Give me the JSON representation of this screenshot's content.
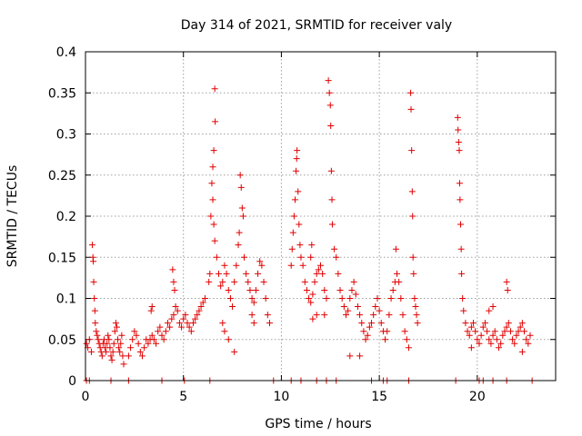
{
  "chart_data": {
    "type": "scatter",
    "title": "Day 314 of 2021, SRMTID for receiver valy",
    "xlabel": "GPS time / hours",
    "ylabel": "SRMTID / TECUs",
    "xlim": [
      0,
      24
    ],
    "ylim": [
      0,
      0.4
    ],
    "xticks": [
      0,
      5,
      10,
      15,
      20
    ],
    "yticks": [
      0,
      0.05,
      0.1,
      0.15,
      0.2,
      0.25,
      0.3,
      0.35,
      0.4
    ],
    "xtick_labels": [
      "0",
      "5",
      "10",
      "15",
      "20"
    ],
    "ytick_labels": [
      "0",
      "0.05",
      "0.1",
      "0.15",
      "0.2",
      "0.25",
      "0.3",
      "0.35",
      "0.4"
    ],
    "grid": true,
    "marker": "+",
    "color": "#e00000",
    "series": [
      {
        "name": "SRMTID",
        "points": [
          [
            0.05,
            0.045
          ],
          [
            0.12,
            0.04
          ],
          [
            0.2,
            0.05
          ],
          [
            0.3,
            0.035
          ],
          [
            0.35,
            0.165
          ],
          [
            0.38,
            0.15
          ],
          [
            0.4,
            0.145
          ],
          [
            0.42,
            0.12
          ],
          [
            0.45,
            0.1
          ],
          [
            0.48,
            0.085
          ],
          [
            0.5,
            0.07
          ],
          [
            0.55,
            0.06
          ],
          [
            0.6,
            0.055
          ],
          [
            0.65,
            0.05
          ],
          [
            0.7,
            0.045
          ],
          [
            0.75,
            0.04
          ],
          [
            0.8,
            0.035
          ],
          [
            0.85,
            0.03
          ],
          [
            0.9,
            0.045
          ],
          [
            0.95,
            0.05
          ],
          [
            1.0,
            0.04
          ],
          [
            1.05,
            0.035
          ],
          [
            1.1,
            0.045
          ],
          [
            1.15,
            0.055
          ],
          [
            1.2,
            0.05
          ],
          [
            1.25,
            0.04
          ],
          [
            1.3,
            0.03
          ],
          [
            1.35,
            0.025
          ],
          [
            1.4,
            0.035
          ],
          [
            1.45,
            0.045
          ],
          [
            1.5,
            0.06
          ],
          [
            1.55,
            0.07
          ],
          [
            1.6,
            0.065
          ],
          [
            1.65,
            0.05
          ],
          [
            1.7,
            0.04
          ],
          [
            1.75,
            0.035
          ],
          [
            1.8,
            0.045
          ],
          [
            1.85,
            0.055
          ],
          [
            1.9,
            0.03
          ],
          [
            1.95,
            0.02
          ],
          [
            2.2,
            0.03
          ],
          [
            2.3,
            0.04
          ],
          [
            2.4,
            0.05
          ],
          [
            2.5,
            0.06
          ],
          [
            2.6,
            0.055
          ],
          [
            2.7,
            0.045
          ],
          [
            2.8,
            0.035
          ],
          [
            2.9,
            0.03
          ],
          [
            3.0,
            0.04
          ],
          [
            3.1,
            0.05
          ],
          [
            3.2,
            0.045
          ],
          [
            3.3,
            0.05
          ],
          [
            3.4,
            0.055
          ],
          [
            3.5,
            0.05
          ],
          [
            3.6,
            0.045
          ],
          [
            3.7,
            0.06
          ],
          [
            3.8,
            0.065
          ],
          [
            3.9,
            0.055
          ],
          [
            4.0,
            0.05
          ],
          [
            4.1,
            0.06
          ],
          [
            4.2,
            0.07
          ],
          [
            4.3,
            0.065
          ],
          [
            4.4,
            0.075
          ],
          [
            4.5,
            0.08
          ],
          [
            4.6,
            0.09
          ],
          [
            4.7,
            0.085
          ],
          [
            4.8,
            0.07
          ],
          [
            4.9,
            0.065
          ],
          [
            5.0,
            0.075
          ],
          [
            5.1,
            0.08
          ],
          [
            5.2,
            0.07
          ],
          [
            5.3,
            0.065
          ],
          [
            5.4,
            0.06
          ],
          [
            5.5,
            0.07
          ],
          [
            5.6,
            0.075
          ],
          [
            5.7,
            0.08
          ],
          [
            5.8,
            0.085
          ],
          [
            5.9,
            0.09
          ],
          [
            6.0,
            0.095
          ],
          [
            6.1,
            0.1
          ],
          [
            4.45,
            0.135
          ],
          [
            4.5,
            0.12
          ],
          [
            4.55,
            0.11
          ],
          [
            3.35,
            0.085
          ],
          [
            3.4,
            0.09
          ],
          [
            6.3,
            0.12
          ],
          [
            6.35,
            0.13
          ],
          [
            6.4,
            0.2
          ],
          [
            6.45,
            0.24
          ],
          [
            6.5,
            0.26
          ],
          [
            6.55,
            0.28
          ],
          [
            6.6,
            0.355
          ],
          [
            6.62,
            0.315
          ],
          [
            6.5,
            0.22
          ],
          [
            6.55,
            0.19
          ],
          [
            6.6,
            0.17
          ],
          [
            6.7,
            0.15
          ],
          [
            6.8,
            0.13
          ],
          [
            6.9,
            0.115
          ],
          [
            7.0,
            0.12
          ],
          [
            7.1,
            0.14
          ],
          [
            7.2,
            0.13
          ],
          [
            7.3,
            0.11
          ],
          [
            7.4,
            0.1
          ],
          [
            7.5,
            0.09
          ],
          [
            7.6,
            0.12
          ],
          [
            7.7,
            0.14
          ],
          [
            7.8,
            0.165
          ],
          [
            7.85,
            0.18
          ],
          [
            7.9,
            0.25
          ],
          [
            7.95,
            0.235
          ],
          [
            8.0,
            0.21
          ],
          [
            8.05,
            0.2
          ],
          [
            8.1,
            0.15
          ],
          [
            8.2,
            0.13
          ],
          [
            8.3,
            0.12
          ],
          [
            8.4,
            0.11
          ],
          [
            8.5,
            0.1
          ],
          [
            8.6,
            0.095
          ],
          [
            8.7,
            0.11
          ],
          [
            8.8,
            0.13
          ],
          [
            8.9,
            0.145
          ],
          [
            9.0,
            0.14
          ],
          [
            9.1,
            0.12
          ],
          [
            9.2,
            0.1
          ],
          [
            9.3,
            0.08
          ],
          [
            9.4,
            0.07
          ],
          [
            7.0,
            0.07
          ],
          [
            7.1,
            0.06
          ],
          [
            7.3,
            0.05
          ],
          [
            7.6,
            0.035
          ],
          [
            8.5,
            0.08
          ],
          [
            8.6,
            0.07
          ],
          [
            10.5,
            0.14
          ],
          [
            10.55,
            0.16
          ],
          [
            10.6,
            0.18
          ],
          [
            10.65,
            0.2
          ],
          [
            10.7,
            0.22
          ],
          [
            10.75,
            0.255
          ],
          [
            10.78,
            0.27
          ],
          [
            10.8,
            0.28
          ],
          [
            10.85,
            0.23
          ],
          [
            10.9,
            0.19
          ],
          [
            10.95,
            0.165
          ],
          [
            11.0,
            0.15
          ],
          [
            11.1,
            0.14
          ],
          [
            11.2,
            0.12
          ],
          [
            11.3,
            0.11
          ],
          [
            11.4,
            0.1
          ],
          [
            11.5,
            0.095
          ],
          [
            11.6,
            0.105
          ],
          [
            11.7,
            0.12
          ],
          [
            11.8,
            0.13
          ],
          [
            11.9,
            0.135
          ],
          [
            12.0,
            0.14
          ],
          [
            12.1,
            0.13
          ],
          [
            12.2,
            0.11
          ],
          [
            12.3,
            0.1
          ],
          [
            12.4,
            0.365
          ],
          [
            12.45,
            0.35
          ],
          [
            12.5,
            0.335
          ],
          [
            12.52,
            0.31
          ],
          [
            12.55,
            0.255
          ],
          [
            12.58,
            0.22
          ],
          [
            12.6,
            0.19
          ],
          [
            12.7,
            0.16
          ],
          [
            12.8,
            0.15
          ],
          [
            12.9,
            0.13
          ],
          [
            13.0,
            0.11
          ],
          [
            13.1,
            0.1
          ],
          [
            11.8,
            0.08
          ],
          [
            11.6,
            0.075
          ],
          [
            12.2,
            0.08
          ],
          [
            11.5,
            0.15
          ],
          [
            11.55,
            0.165
          ],
          [
            13.2,
            0.09
          ],
          [
            13.3,
            0.08
          ],
          [
            13.4,
            0.085
          ],
          [
            13.5,
            0.1
          ],
          [
            13.6,
            0.11
          ],
          [
            13.7,
            0.12
          ],
          [
            13.8,
            0.105
          ],
          [
            13.9,
            0.09
          ],
          [
            14.0,
            0.08
          ],
          [
            14.1,
            0.07
          ],
          [
            14.2,
            0.06
          ],
          [
            14.3,
            0.05
          ],
          [
            14.4,
            0.055
          ],
          [
            14.5,
            0.065
          ],
          [
            14.6,
            0.07
          ],
          [
            14.7,
            0.08
          ],
          [
            14.8,
            0.09
          ],
          [
            14.9,
            0.1
          ],
          [
            15.0,
            0.085
          ],
          [
            15.1,
            0.07
          ],
          [
            15.2,
            0.06
          ],
          [
            15.3,
            0.05
          ],
          [
            15.4,
            0.06
          ],
          [
            15.5,
            0.08
          ],
          [
            15.6,
            0.1
          ],
          [
            15.7,
            0.11
          ],
          [
            15.8,
            0.12
          ],
          [
            15.9,
            0.13
          ],
          [
            16.0,
            0.12
          ],
          [
            16.1,
            0.1
          ],
          [
            16.2,
            0.08
          ],
          [
            16.3,
            0.06
          ],
          [
            16.4,
            0.05
          ],
          [
            16.5,
            0.04
          ],
          [
            16.6,
            0.35
          ],
          [
            16.62,
            0.33
          ],
          [
            16.65,
            0.28
          ],
          [
            16.68,
            0.23
          ],
          [
            16.7,
            0.2
          ],
          [
            16.72,
            0.15
          ],
          [
            16.75,
            0.13
          ],
          [
            16.8,
            0.1
          ],
          [
            16.85,
            0.09
          ],
          [
            16.9,
            0.08
          ],
          [
            16.95,
            0.07
          ],
          [
            15.85,
            0.16
          ],
          [
            14.0,
            0.03
          ],
          [
            13.5,
            0.03
          ],
          [
            19.0,
            0.32
          ],
          [
            19.02,
            0.305
          ],
          [
            19.05,
            0.29
          ],
          [
            19.08,
            0.28
          ],
          [
            19.1,
            0.24
          ],
          [
            19.12,
            0.22
          ],
          [
            19.15,
            0.19
          ],
          [
            19.18,
            0.16
          ],
          [
            19.2,
            0.13
          ],
          [
            19.25,
            0.1
          ],
          [
            19.3,
            0.085
          ],
          [
            19.4,
            0.07
          ],
          [
            19.5,
            0.06
          ],
          [
            19.6,
            0.055
          ],
          [
            19.7,
            0.065
          ],
          [
            19.8,
            0.07
          ],
          [
            19.9,
            0.06
          ],
          [
            20.0,
            0.05
          ],
          [
            20.1,
            0.045
          ],
          [
            20.2,
            0.055
          ],
          [
            20.3,
            0.065
          ],
          [
            20.4,
            0.07
          ],
          [
            20.5,
            0.06
          ],
          [
            20.6,
            0.05
          ],
          [
            20.7,
            0.045
          ],
          [
            20.8,
            0.055
          ],
          [
            20.9,
            0.06
          ],
          [
            21.0,
            0.05
          ],
          [
            21.1,
            0.04
          ],
          [
            21.2,
            0.045
          ],
          [
            21.3,
            0.055
          ],
          [
            21.4,
            0.06
          ],
          [
            21.5,
            0.065
          ],
          [
            21.6,
            0.07
          ],
          [
            21.7,
            0.06
          ],
          [
            21.8,
            0.05
          ],
          [
            21.9,
            0.045
          ],
          [
            22.0,
            0.055
          ],
          [
            22.1,
            0.06
          ],
          [
            22.2,
            0.065
          ],
          [
            22.3,
            0.07
          ],
          [
            22.4,
            0.06
          ],
          [
            22.5,
            0.05
          ],
          [
            22.6,
            0.045
          ],
          [
            22.7,
            0.055
          ],
          [
            21.5,
            0.12
          ],
          [
            21.55,
            0.11
          ],
          [
            20.6,
            0.085
          ],
          [
            20.8,
            0.09
          ],
          [
            22.3,
            0.035
          ],
          [
            19.7,
            0.04
          ]
        ]
      },
      {
        "name": "zero-level",
        "points": [
          [
            0.05,
            0
          ],
          [
            0.2,
            0
          ],
          [
            1.3,
            0
          ],
          [
            2.2,
            0
          ],
          [
            3.9,
            0
          ],
          [
            5.05,
            0
          ],
          [
            6.35,
            0
          ],
          [
            9.6,
            0
          ],
          [
            10.5,
            0
          ],
          [
            11.0,
            0
          ],
          [
            11.8,
            0
          ],
          [
            12.3,
            0
          ],
          [
            12.8,
            0
          ],
          [
            14.6,
            0
          ],
          [
            15.2,
            0
          ],
          [
            15.4,
            0
          ],
          [
            16.5,
            0
          ],
          [
            18.9,
            0
          ],
          [
            20.1,
            0
          ],
          [
            20.3,
            0
          ],
          [
            20.8,
            0
          ],
          [
            21.5,
            0
          ],
          [
            22.8,
            0
          ]
        ]
      }
    ]
  }
}
